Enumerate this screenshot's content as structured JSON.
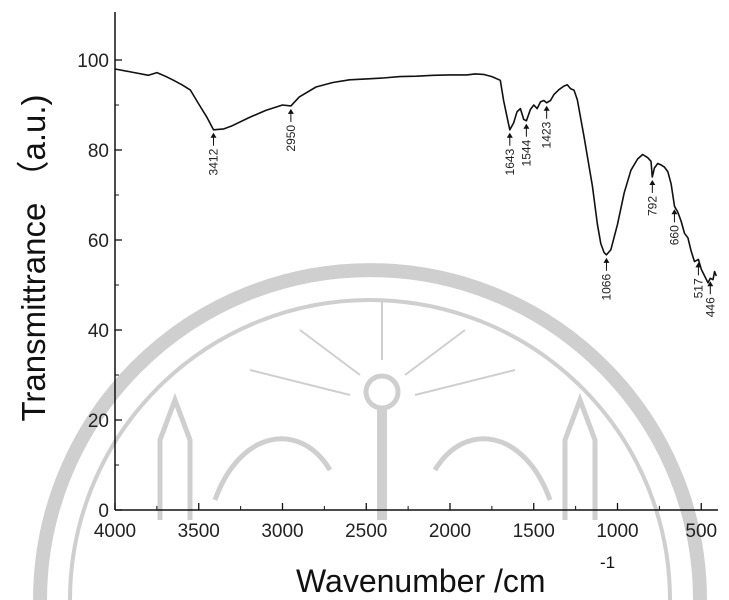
{
  "chart_data": {
    "type": "line",
    "xlabel": "Wavenumber /cm",
    "xlabel_superscript": "-1",
    "ylabel": "Transmittrance （a.u.)",
    "xlim": [
      4000,
      400
    ],
    "ylim": [
      0,
      100
    ],
    "x_ticks": [
      "4000",
      "3500",
      "3000",
      "2500",
      "2000",
      "1500",
      "1000",
      "500"
    ],
    "y_ticks": [
      "0",
      "20",
      "40",
      "60",
      "80",
      "100"
    ],
    "grid": false,
    "series": [
      {
        "x": [
          4000,
          3900,
          3800,
          3750,
          3700,
          3650,
          3600,
          3550,
          3500,
          3450,
          3412,
          3350,
          3300,
          3200,
          3100,
          3000,
          2950,
          2900,
          2800,
          2700,
          2600,
          2500,
          2400,
          2300,
          2200,
          2100,
          2000,
          1900,
          1850,
          1800,
          1750,
          1700,
          1680,
          1660,
          1643,
          1620,
          1600,
          1580,
          1560,
          1544,
          1520,
          1500,
          1480,
          1460,
          1440,
          1423,
          1400,
          1380,
          1350,
          1320,
          1300,
          1280,
          1260,
          1240,
          1200,
          1150,
          1120,
          1100,
          1080,
          1066,
          1040,
          1000,
          960,
          920,
          880,
          850,
          820,
          800,
          792,
          780,
          760,
          740,
          720,
          700,
          680,
          660,
          640,
          620,
          600,
          580,
          560,
          540,
          517,
          500,
          480,
          460,
          446,
          430,
          420,
          410
        ],
        "y": [
          98,
          97.3,
          96.6,
          97.2,
          96.4,
          95.5,
          94.5,
          93.3,
          90.2,
          87.2,
          84.5,
          84.7,
          85.4,
          87.2,
          88.8,
          90,
          89.8,
          91.8,
          94,
          95,
          95.6,
          95.8,
          96,
          96.3,
          96.4,
          96.6,
          96.7,
          96.7,
          96.9,
          96.8,
          96.3,
          95.5,
          91,
          87.5,
          84.5,
          86,
          88.5,
          89.2,
          86.8,
          86.5,
          89,
          90,
          89.2,
          90.7,
          91,
          90.5,
          91,
          92.3,
          93.4,
          94.2,
          94.5,
          93.6,
          93.3,
          91.2,
          83,
          72,
          63.5,
          59.2,
          57.2,
          56.7,
          57.8,
          63.5,
          70.5,
          75.5,
          78,
          79,
          78.3,
          77.5,
          74,
          76,
          77,
          76.7,
          76.2,
          75.2,
          72.5,
          67.5,
          66.2,
          64.2,
          61.5,
          60.5,
          57.5,
          55.2,
          55.7,
          53.5,
          52,
          50.5,
          51.5,
          51.2,
          53,
          52
        ]
      }
    ],
    "annotations": [
      {
        "label": "3412",
        "x": 3412,
        "y": 84.5
      },
      {
        "label": "2950",
        "x": 2950,
        "y": 89.8
      },
      {
        "label": "1643",
        "x": 1643,
        "y": 84.5
      },
      {
        "label": "1544",
        "x": 1544,
        "y": 86.5
      },
      {
        "label": "1423",
        "x": 1423,
        "y": 90.5
      },
      {
        "label": "1066",
        "x": 1066,
        "y": 56.7
      },
      {
        "label": "792",
        "x": 792,
        "y": 74
      },
      {
        "label": "660",
        "x": 660,
        "y": 67.5
      },
      {
        "label": "517",
        "x": 517,
        "y": 55.7
      },
      {
        "label": "446",
        "x": 446,
        "y": 51.5
      }
    ]
  }
}
